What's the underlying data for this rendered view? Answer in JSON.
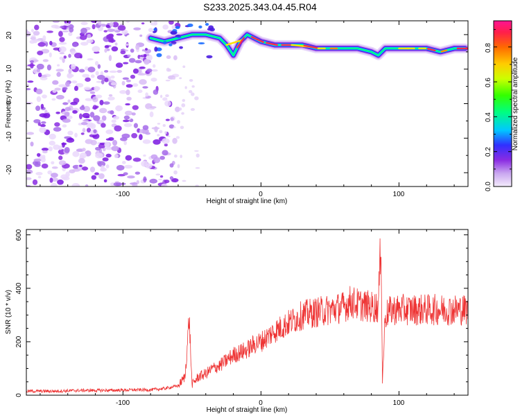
{
  "title": "S233.2025.343.04.45.R04",
  "chart_data": [
    {
      "type": "heatmap",
      "xlabel": "Height of straight line (km)",
      "ylabel": "Frequency (Hz)",
      "xlim": [
        -170,
        150
      ],
      "ylim": [
        -24,
        24
      ],
      "x_ticks": [
        -100,
        0,
        100
      ],
      "y_ticks": [
        -20,
        -10,
        0,
        10,
        20
      ],
      "colorbar": {
        "label": "Normalized spectral amplitude",
        "range": [
          0,
          0.95
        ],
        "ticks": [
          0.0,
          0.2,
          0.4,
          0.6,
          0.8
        ]
      },
      "ridge": {
        "x": [
          -80,
          -70,
          -60,
          -50,
          -40,
          -30,
          -25,
          -20,
          -15,
          -10,
          -5,
          0,
          10,
          20,
          30,
          40,
          50,
          60,
          70,
          80,
          85,
          90,
          100,
          110,
          120,
          130,
          140,
          148
        ],
        "y": [
          19,
          18,
          19,
          20,
          20,
          19,
          17,
          14,
          18,
          20,
          19,
          18,
          17,
          17,
          17,
          16,
          16,
          16,
          16,
          15,
          14,
          16,
          16,
          16,
          16,
          15,
          16,
          16
        ]
      }
    },
    {
      "type": "line",
      "xlabel": "Height of straight line (km)",
      "ylabel": "SNR (10 * v/v)",
      "xlim": [
        -170,
        150
      ],
      "ylim": [
        0,
        620
      ],
      "x_ticks": [
        -100,
        0,
        100
      ],
      "y_ticks": [
        0,
        200,
        400,
        600
      ],
      "series": [
        {
          "color": "#ee3333",
          "x": [
            -170,
            -150,
            -130,
            -110,
            -90,
            -80,
            -70,
            -60,
            -55,
            -52,
            -50,
            -45,
            -40,
            -35,
            -30,
            -25,
            -20,
            -15,
            -10,
            -5,
            0,
            10,
            20,
            30,
            40,
            50,
            60,
            65,
            70,
            80,
            85,
            87,
            88,
            90,
            95,
            100,
            110,
            120,
            130,
            140,
            150
          ],
          "y": [
            15,
            15,
            18,
            18,
            20,
            20,
            25,
            35,
            70,
            290,
            40,
            70,
            80,
            100,
            110,
            130,
            150,
            160,
            170,
            190,
            200,
            240,
            270,
            300,
            310,
            320,
            330,
            350,
            340,
            330,
            330,
            600,
            50,
            300,
            320,
            320,
            320,
            320,
            320,
            320,
            320
          ]
        }
      ]
    }
  ]
}
